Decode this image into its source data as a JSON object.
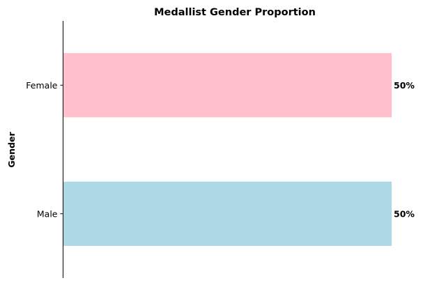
{
  "chart_data": {
    "type": "bar",
    "orientation": "horizontal",
    "title": "Medallist Gender Proportion",
    "xlabel": "",
    "ylabel": "Gender",
    "categories": [
      "Male",
      "Female"
    ],
    "values": [
      50,
      50
    ],
    "value_labels": [
      "50%",
      "50%"
    ],
    "xlim": [
      0,
      50
    ],
    "colors": [
      "#add8e6",
      "#ffc0cb"
    ],
    "grid": false,
    "legend": "none"
  }
}
